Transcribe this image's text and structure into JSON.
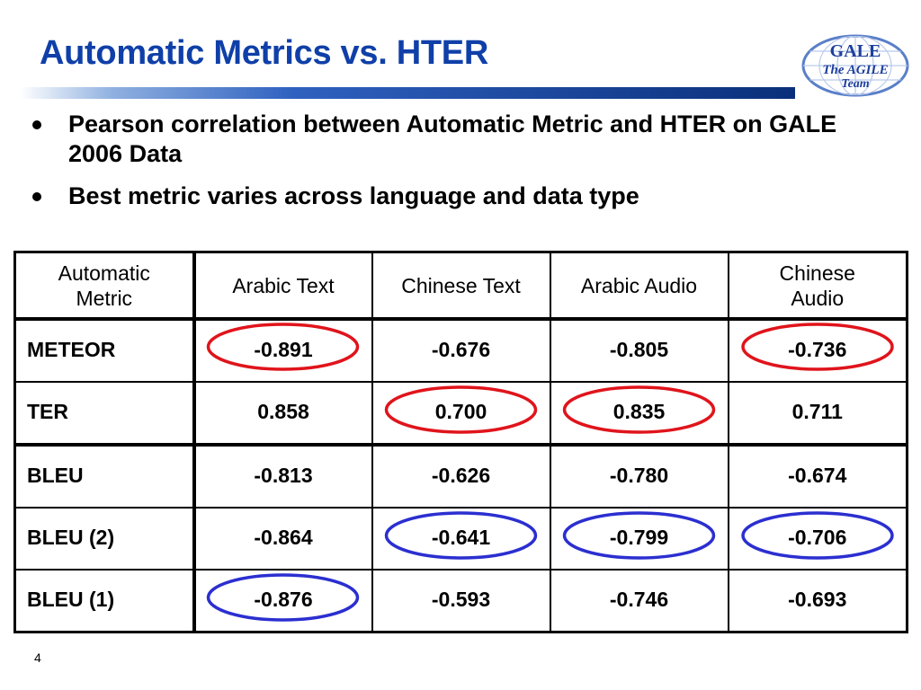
{
  "slide": {
    "title": "Automatic Metrics vs. HTER",
    "page_number": "4"
  },
  "logo": {
    "line1": "GALE",
    "line2": "The AGILE",
    "line3": "Team"
  },
  "bullets": [
    "Pearson correlation between Automatic Metric and HTER on GALE 2006 Data",
    "Best metric varies across language and data type"
  ],
  "table": {
    "headers": {
      "metric_line1": "Automatic",
      "metric_line2": "Metric",
      "c1": "Arabic Text",
      "c2": "Chinese Text",
      "c3": "Arabic Audio",
      "c4_line1": "Chinese",
      "c4_line2": "Audio"
    },
    "rows": [
      {
        "name": "METEOR",
        "values": [
          "-0.891",
          "-0.676",
          "-0.805",
          "-0.736"
        ]
      },
      {
        "name": "TER",
        "values": [
          "0.858",
          "0.700",
          "0.835",
          "0.711"
        ]
      },
      {
        "name": "BLEU",
        "values": [
          "-0.813",
          "-0.626",
          "-0.780",
          "-0.674"
        ]
      },
      {
        "name": "BLEU (2)",
        "values": [
          "-0.864",
          "-0.641",
          "-0.799",
          "-0.706"
        ]
      },
      {
        "name": "BLEU (1)",
        "values": [
          "-0.876",
          "-0.593",
          "-0.746",
          "-0.693"
        ]
      }
    ]
  },
  "highlights": {
    "red_color": "#e0141b",
    "blue_color": "#2b2fd0",
    "red_cells": [
      [
        0,
        0
      ],
      [
        0,
        3
      ],
      [
        1,
        1
      ],
      [
        1,
        2
      ]
    ],
    "blue_cells": [
      [
        3,
        1
      ],
      [
        3,
        2
      ],
      [
        3,
        3
      ],
      [
        4,
        0
      ]
    ]
  }
}
